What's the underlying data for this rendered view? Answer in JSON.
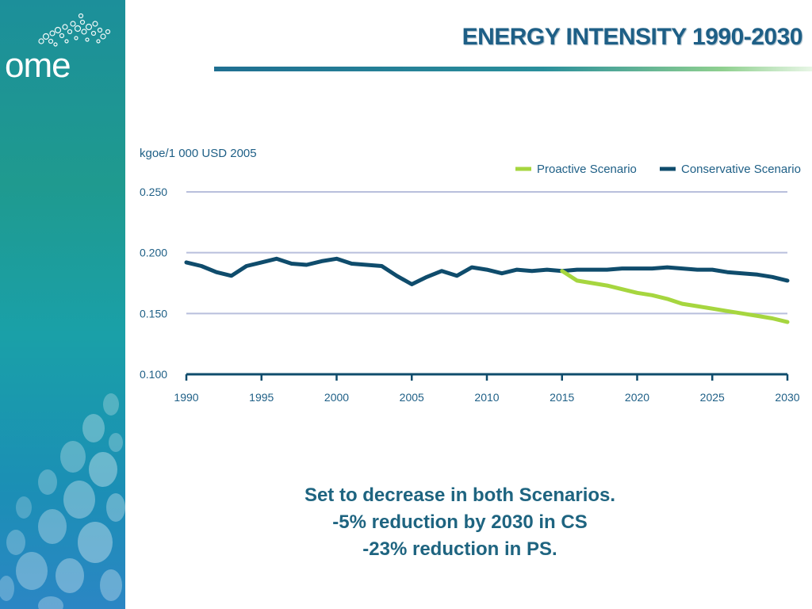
{
  "slide": {
    "title": "ENERGY INTENSITY 1990-2030",
    "logo_text": "ome",
    "caption_lines": [
      "Set to decrease in both Scenarios.",
      "-5% reduction by 2030 in CS",
      "-23% reduction in PS."
    ]
  },
  "colors": {
    "proactive": "#a6d63f",
    "conservative": "#0f4c6c",
    "grid": "#b9bfdc",
    "axis": "#0f4c6c",
    "text": "#1e5f86"
  },
  "chart_data": {
    "type": "line",
    "ylabel": "kgoe/1 000 USD 2005",
    "ylim": [
      0.1,
      0.25
    ],
    "yticks": [
      "0.250",
      "0.200",
      "0.150",
      "0.100"
    ],
    "xlim": [
      1990,
      2030
    ],
    "xticks": [
      "1990",
      "1995",
      "2000",
      "2005",
      "2010",
      "2015",
      "2020",
      "2025",
      "2030"
    ],
    "grid": true,
    "legend_position": "top-right",
    "series": [
      {
        "name": "Proactive Scenario",
        "x": [
          2015,
          2016,
          2017,
          2018,
          2019,
          2020,
          2021,
          2022,
          2023,
          2024,
          2025,
          2026,
          2027,
          2028,
          2029,
          2030
        ],
        "values": [
          0.185,
          0.177,
          0.175,
          0.173,
          0.17,
          0.167,
          0.165,
          0.162,
          0.158,
          0.156,
          0.154,
          0.152,
          0.15,
          0.148,
          0.146,
          0.143
        ]
      },
      {
        "name": "Conservative Scenario",
        "x": [
          1990,
          1991,
          1992,
          1993,
          1994,
          1995,
          1996,
          1997,
          1998,
          1999,
          2000,
          2001,
          2002,
          2003,
          2004,
          2005,
          2006,
          2007,
          2008,
          2009,
          2010,
          2011,
          2012,
          2013,
          2014,
          2015,
          2016,
          2017,
          2018,
          2019,
          2020,
          2021,
          2022,
          2023,
          2024,
          2025,
          2026,
          2027,
          2028,
          2029,
          2030
        ],
        "values": [
          0.192,
          0.189,
          0.184,
          0.181,
          0.189,
          0.192,
          0.195,
          0.191,
          0.19,
          0.193,
          0.195,
          0.191,
          0.19,
          0.189,
          0.181,
          0.174,
          0.18,
          0.185,
          0.181,
          0.188,
          0.186,
          0.183,
          0.186,
          0.185,
          0.186,
          0.185,
          0.186,
          0.186,
          0.186,
          0.187,
          0.187,
          0.187,
          0.188,
          0.187,
          0.186,
          0.186,
          0.184,
          0.183,
          0.182,
          0.18,
          0.177
        ]
      }
    ]
  }
}
